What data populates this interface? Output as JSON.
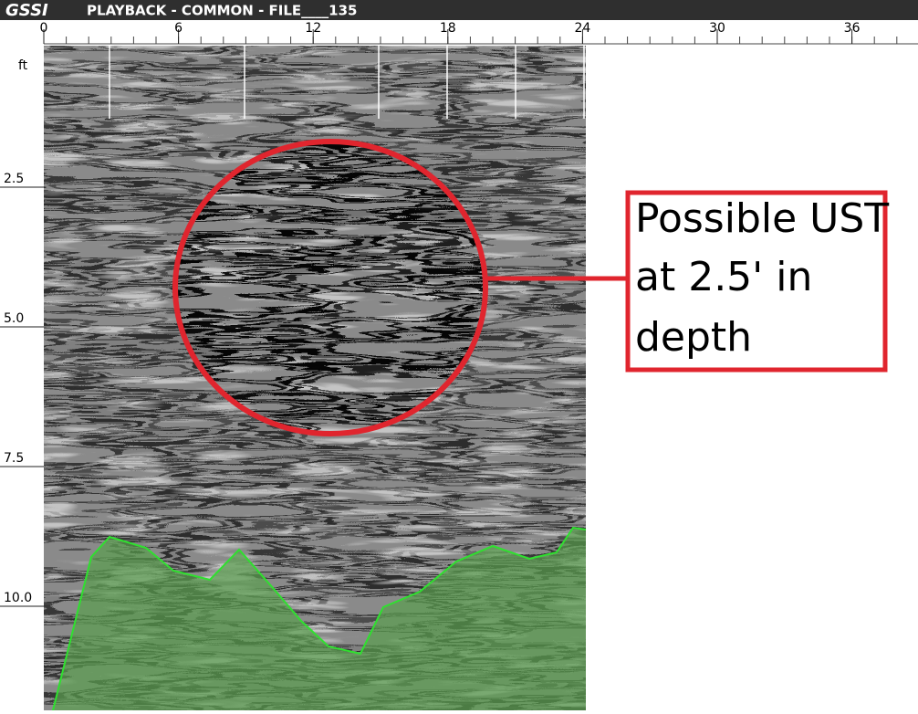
{
  "header": {
    "logo": "GSSI",
    "title": "PLAYBACK - COMMON - FILE____135"
  },
  "x_axis": {
    "ticks": [
      0,
      6,
      12,
      18,
      24,
      30,
      36
    ]
  },
  "y_axis": {
    "unit": "ft",
    "ticks": [
      {
        "value": 2.5,
        "label": "2.5"
      },
      {
        "value": 5,
        "label": "5.0"
      },
      {
        "value": 7.5,
        "label": "7.5"
      },
      {
        "value": 10,
        "label": "10.0"
      }
    ]
  },
  "annotation": {
    "lines": [
      "Possible UST",
      "at 2.5' in",
      "depth"
    ]
  }
}
